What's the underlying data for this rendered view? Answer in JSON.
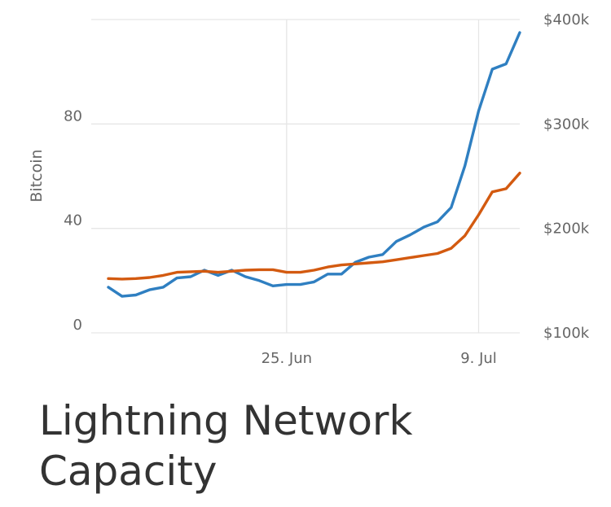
{
  "title": "Lightning Network Capacity",
  "chart_data": {
    "type": "line",
    "y_left": {
      "label": "Bitcoin",
      "ticks": [
        0,
        40,
        80
      ],
      "range": [
        0,
        120
      ]
    },
    "y_right": {
      "ticks": [
        "$100k",
        "$200k",
        "$300k",
        "$400k"
      ],
      "values": [
        100,
        200,
        300,
        400
      ],
      "range": [
        100,
        400
      ]
    },
    "x_ticks": [
      "25. Jun",
      "9. Jul"
    ],
    "x_tick_index": [
      13,
      27
    ],
    "grid": "horizontal",
    "colors": {
      "btc": "#2f7fc1",
      "usd": "#d35a10"
    },
    "series": [
      {
        "axis": "left",
        "color": "#2f7fc1",
        "values": [
          17.5,
          14,
          14.5,
          16.5,
          17.5,
          21,
          21.5,
          24,
          22,
          24,
          21.5,
          20,
          18,
          18.5,
          18.5,
          19.5,
          22.5,
          22.5,
          27,
          29,
          30,
          35,
          37.5,
          40.5,
          42.5,
          48,
          64,
          85,
          101,
          103,
          115
        ]
      },
      {
        "axis": "right",
        "color": "#d35a10",
        "values": [
          152,
          151.5,
          152,
          153,
          155,
          158,
          158.5,
          159,
          158,
          159,
          160,
          160.5,
          160.5,
          158,
          158,
          160,
          163,
          165,
          166,
          167,
          168,
          170,
          172,
          174,
          176,
          181,
          193,
          213,
          235,
          238,
          253
        ]
      }
    ]
  }
}
